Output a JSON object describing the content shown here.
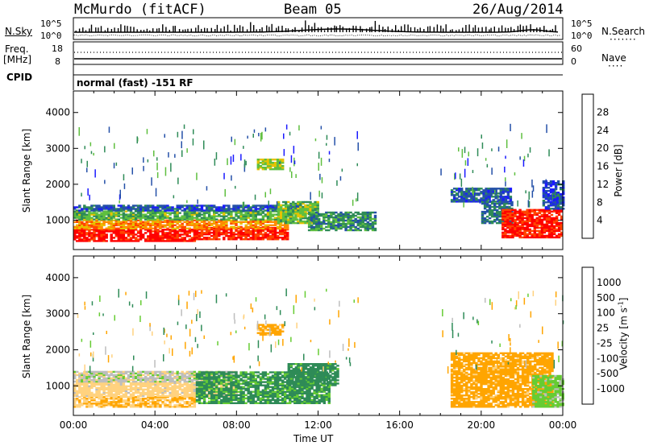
{
  "header": {
    "station": "McMurdo (fitACF)",
    "beam": "Beam 05",
    "date": "26/Aug/2014"
  },
  "status_panels": {
    "nsky_label": "N.Sky",
    "nsky_ticks": [
      "10^5",
      "10^0"
    ],
    "nsearch_label": "N.Search",
    "nsearch_ticks": [
      "10^5",
      "10^0"
    ],
    "freq_label": "Freq.",
    "freq_unit": "[MHz]",
    "freq_ticks": [
      "18",
      "8"
    ],
    "nave_label": "Nave",
    "nave_ticks": [
      "60",
      "0"
    ],
    "cpid_label": "CPID",
    "cpid_text": "normal (fast) -151 RF"
  },
  "colors": {
    "power": [
      "#1a1aff",
      "#2450a8",
      "#2e8b57",
      "#5fbf3f",
      "#e6c200",
      "#ff8c00",
      "#ff4500",
      "#ff0000"
    ],
    "velocity": [
      "#2040c0",
      "#3a6fb0",
      "#2e8b57",
      "#66cc33",
      "#bdbdbd",
      "#ffd27f",
      "#ffa500",
      "#ff6600",
      "#ff0000"
    ]
  },
  "chart_data": [
    {
      "type": "heatmap",
      "title": "",
      "xlabel": "",
      "ylabel": "Slant Range [km]",
      "x_ticks": [
        "00:00",
        "04:00",
        "08:00",
        "12:00",
        "16:00",
        "20:00",
        "00:00"
      ],
      "x_range_hours": [
        0,
        24
      ],
      "y_ticks": [
        1000,
        2000,
        3000,
        4000
      ],
      "ylim": [
        180,
        4600
      ],
      "colorbar_label": "Power [dB]",
      "colorbar_ticks": [
        4,
        8,
        12,
        16,
        20,
        24,
        28
      ],
      "colorbar_range": [
        0,
        32
      ],
      "regions": [
        {
          "t0": 0.0,
          "t1": 6.0,
          "r0": 400,
          "r1": 750,
          "value": 30
        },
        {
          "t0": 6.0,
          "t1": 10.5,
          "r0": 450,
          "r1": 800,
          "value": 28
        },
        {
          "t0": 0.0,
          "t1": 10.5,
          "r0": 750,
          "r1": 1000,
          "value": 22
        },
        {
          "t0": 0.0,
          "t1": 11.0,
          "r0": 1000,
          "r1": 1250,
          "value": 13
        },
        {
          "t0": 0.0,
          "t1": 11.5,
          "r0": 1250,
          "r1": 1400,
          "value": 6
        },
        {
          "t0": 10.0,
          "t1": 12.0,
          "r0": 900,
          "r1": 1500,
          "value": 14
        },
        {
          "t0": 11.5,
          "t1": 14.8,
          "r0": 700,
          "r1": 1200,
          "value": 10
        },
        {
          "t0": 9.0,
          "t1": 10.3,
          "r0": 2400,
          "r1": 2700,
          "value": 16
        },
        {
          "t0": 18.5,
          "t1": 21.5,
          "r0": 1500,
          "r1": 1900,
          "value": 6
        },
        {
          "t0": 20.0,
          "t1": 21.5,
          "r0": 900,
          "r1": 1500,
          "value": 8
        },
        {
          "t0": 21.0,
          "t1": 24.0,
          "r0": 500,
          "r1": 1300,
          "value": 29
        },
        {
          "t0": 23.0,
          "t1": 24.0,
          "r0": 1300,
          "r1": 2100,
          "value": 5
        }
      ]
    },
    {
      "type": "heatmap",
      "title": "",
      "xlabel": "Time UT",
      "ylabel": "Slant Range [km]",
      "x_ticks": [
        "00:00",
        "04:00",
        "08:00",
        "12:00",
        "16:00",
        "20:00",
        "00:00"
      ],
      "x_range_hours": [
        0,
        24
      ],
      "y_ticks": [
        1000,
        2000,
        3000,
        4000
      ],
      "ylim": [
        180,
        4600
      ],
      "colorbar_label": "Velocity [m s^-1]",
      "colorbar_ticks": [
        1000,
        500,
        100,
        25,
        -25,
        -100,
        -500,
        -1000
      ],
      "regions": [
        {
          "t0": 0.0,
          "t1": 6.0,
          "r0": 400,
          "r1": 700,
          "value": -100
        },
        {
          "t0": 0.0,
          "t1": 8.0,
          "r0": 700,
          "r1": 1100,
          "value": -60
        },
        {
          "t0": 0.0,
          "t1": 8.0,
          "r0": 1100,
          "r1": 1400,
          "value": 0
        },
        {
          "t0": 6.0,
          "t1": 12.5,
          "r0": 500,
          "r1": 1400,
          "value": 150
        },
        {
          "t0": 10.5,
          "t1": 13.0,
          "r0": 1000,
          "r1": 1600,
          "value": 200
        },
        {
          "t0": 9.0,
          "t1": 10.3,
          "r0": 2400,
          "r1": 2700,
          "value": -200
        },
        {
          "t0": 18.5,
          "t1": 23.5,
          "r0": 400,
          "r1": 1900,
          "value": -200
        },
        {
          "t0": 22.5,
          "t1": 24.0,
          "r0": 400,
          "r1": 1300,
          "value": 50
        }
      ]
    }
  ]
}
